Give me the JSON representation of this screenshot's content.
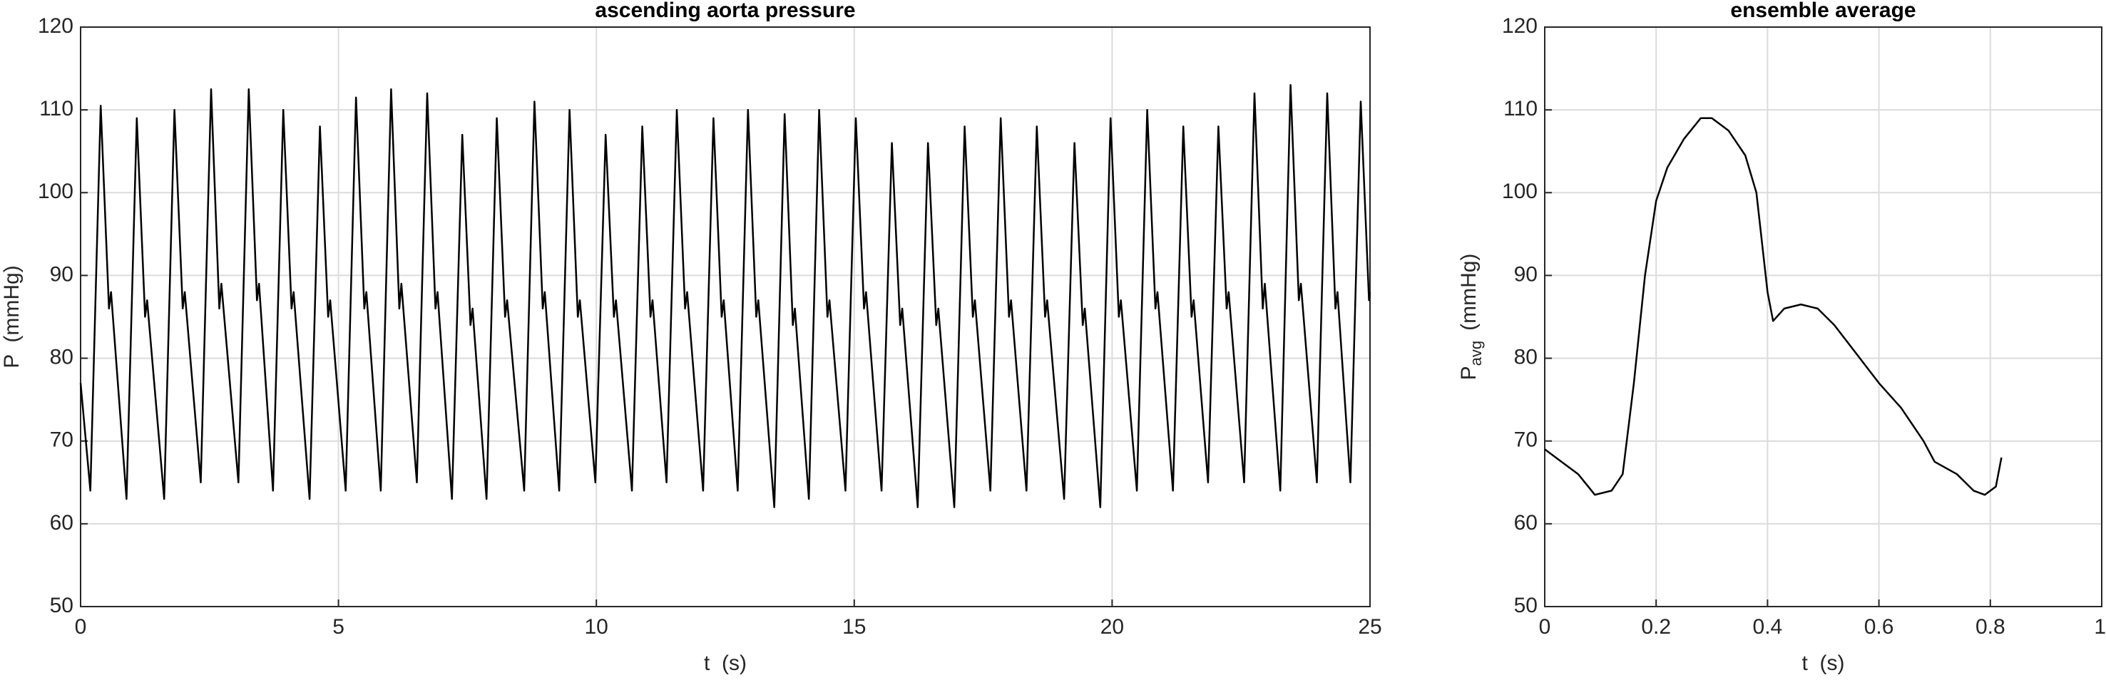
{
  "chart_data": [
    {
      "type": "line",
      "title": "ascending aorta pressure",
      "xlabel": "t  (s)",
      "ylabel": "P  (mmHg)",
      "xlim": [
        0,
        25
      ],
      "xticks": [
        0,
        5,
        10,
        15,
        20,
        25
      ],
      "ylim": [
        50,
        120
      ],
      "yticks": [
        50,
        60,
        70,
        80,
        90,
        100,
        110,
        120
      ],
      "grid": true,
      "x": [
        0,
        0.19,
        0.39,
        0.55,
        0.59,
        0.89,
        1.09,
        1.25,
        1.29,
        1.62,
        1.82,
        1.98,
        2.02,
        2.33,
        2.53,
        2.69,
        2.73,
        3.06,
        3.26,
        3.42,
        3.46,
        3.73,
        3.93,
        4.09,
        4.13,
        4.44,
        4.64,
        4.8,
        4.84,
        5.14,
        5.34,
        5.5,
        5.54,
        5.82,
        6.02,
        6.18,
        6.22,
        6.52,
        6.72,
        6.88,
        6.92,
        7.2,
        7.4,
        7.56,
        7.6,
        7.87,
        8.07,
        8.23,
        8.27,
        8.6,
        8.8,
        8.96,
        9.0,
        9.28,
        9.48,
        9.64,
        9.68,
        9.98,
        10.18,
        10.34,
        10.38,
        10.69,
        10.89,
        11.05,
        11.09,
        11.36,
        11.56,
        11.72,
        11.76,
        12.07,
        12.27,
        12.43,
        12.47,
        12.74,
        12.94,
        13.1,
        13.14,
        13.45,
        13.65,
        13.81,
        13.85,
        14.12,
        14.32,
        14.48,
        14.52,
        14.83,
        15.03,
        15.19,
        15.23,
        15.53,
        15.73,
        15.89,
        15.93,
        16.23,
        16.43,
        16.59,
        16.63,
        16.94,
        17.14,
        17.3,
        17.34,
        17.64,
        17.84,
        18.0,
        18.04,
        18.34,
        18.54,
        18.7,
        18.74,
        19.07,
        19.27,
        19.43,
        19.47,
        19.77,
        19.97,
        20.13,
        20.17,
        20.48,
        20.68,
        20.84,
        20.88,
        21.18,
        21.38,
        21.54,
        21.58,
        21.86,
        22.06,
        22.22,
        22.26,
        22.56,
        22.76,
        22.92,
        22.96,
        23.26,
        23.46,
        23.62,
        23.66,
        23.97,
        24.17,
        24.33,
        24.37,
        24.62,
        24.82,
        24.98,
        25.0
      ],
      "series": [
        {
          "name": "P",
          "color": "#000000",
          "values": [
            77,
            64,
            110.5,
            86,
            88,
            63,
            109,
            85,
            87,
            63,
            110,
            86,
            88,
            65,
            112.5,
            86,
            89,
            65,
            112.5,
            87,
            89,
            64,
            110,
            86,
            88,
            63,
            108,
            85,
            87,
            64,
            111.5,
            86,
            88,
            64,
            112.5,
            86,
            89,
            65,
            112,
            86,
            88,
            63,
            107,
            84,
            86,
            63,
            109,
            85,
            87,
            64,
            111,
            86,
            88,
            64,
            110,
            85,
            87,
            65,
            107,
            85,
            87,
            64,
            108,
            85,
            87,
            65,
            110,
            86,
            88,
            64,
            109,
            85,
            87,
            64,
            110,
            85,
            87,
            62,
            109.5,
            84,
            86,
            63,
            110,
            85,
            87,
            64,
            109,
            86,
            88,
            64,
            106,
            84,
            86,
            62,
            106,
            84,
            86,
            62,
            108,
            85,
            87,
            64,
            109,
            85,
            87,
            64,
            108,
            85,
            87,
            63,
            106,
            84,
            86,
            62,
            109,
            85,
            87,
            64,
            110,
            86,
            88,
            64,
            108,
            85,
            87,
            65,
            108,
            86,
            88,
            65,
            112,
            86,
            89,
            64,
            113,
            87,
            89,
            65,
            112,
            86,
            88,
            65,
            111,
            87,
            88
          ]
        }
      ]
    },
    {
      "type": "line",
      "title": "ensemble average",
      "xlabel": "t  (s)",
      "ylabel": "P",
      "ylabel_sub": "avg",
      "ylabel_unit": "(mmHg)",
      "xlim": [
        0,
        1
      ],
      "xticks": [
        0,
        0.2,
        0.4,
        0.6,
        0.8,
        1
      ],
      "ylim": [
        50,
        120
      ],
      "yticks": [
        50,
        60,
        70,
        80,
        90,
        100,
        110,
        120
      ],
      "grid": true,
      "x": [
        0,
        0.03,
        0.06,
        0.09,
        0.12,
        0.14,
        0.16,
        0.18,
        0.2,
        0.22,
        0.25,
        0.28,
        0.3,
        0.33,
        0.36,
        0.38,
        0.4,
        0.41,
        0.43,
        0.46,
        0.49,
        0.52,
        0.56,
        0.6,
        0.64,
        0.68,
        0.7,
        0.74,
        0.77,
        0.79,
        0.81,
        0.82
      ],
      "series": [
        {
          "name": "P_avg",
          "color": "#000000",
          "values": [
            69,
            67.5,
            66,
            63.5,
            64,
            66,
            77,
            90,
            99,
            103,
            106.5,
            109,
            109,
            107.5,
            104.5,
            100,
            88,
            84.5,
            86,
            86.5,
            86,
            84,
            80.5,
            77,
            74,
            70,
            67.5,
            66,
            64,
            63.5,
            64.5,
            68
          ]
        }
      ]
    }
  ]
}
